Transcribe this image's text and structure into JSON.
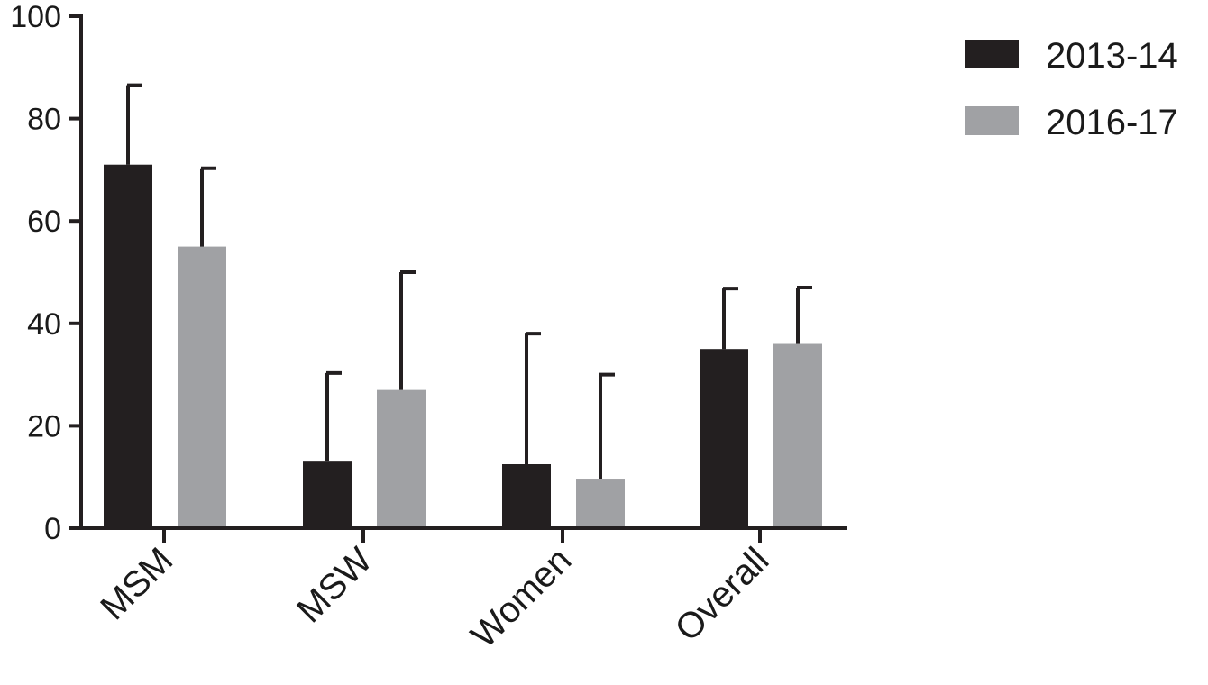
{
  "chart_data": {
    "type": "bar",
    "title": "",
    "xlabel": "",
    "ylabel": "",
    "categories": [
      "MSM",
      "MSW",
      "Women",
      "Overall"
    ],
    "ylim": [
      0,
      100
    ],
    "yticks": [
      0,
      20,
      40,
      60,
      80,
      100
    ],
    "grid": false,
    "legend_position": "top-right",
    "error_bars": "upper",
    "series": [
      {
        "name": "2013-14",
        "color": "#231f20",
        "values": [
          71,
          13,
          12.5,
          35
        ],
        "error_upper": [
          86.5,
          30.3,
          38,
          46.8
        ]
      },
      {
        "name": "2016-17",
        "color": "#a0a1a4",
        "values": [
          55,
          27,
          9.5,
          36
        ],
        "error_upper": [
          70.3,
          50,
          30,
          47
        ]
      }
    ]
  }
}
